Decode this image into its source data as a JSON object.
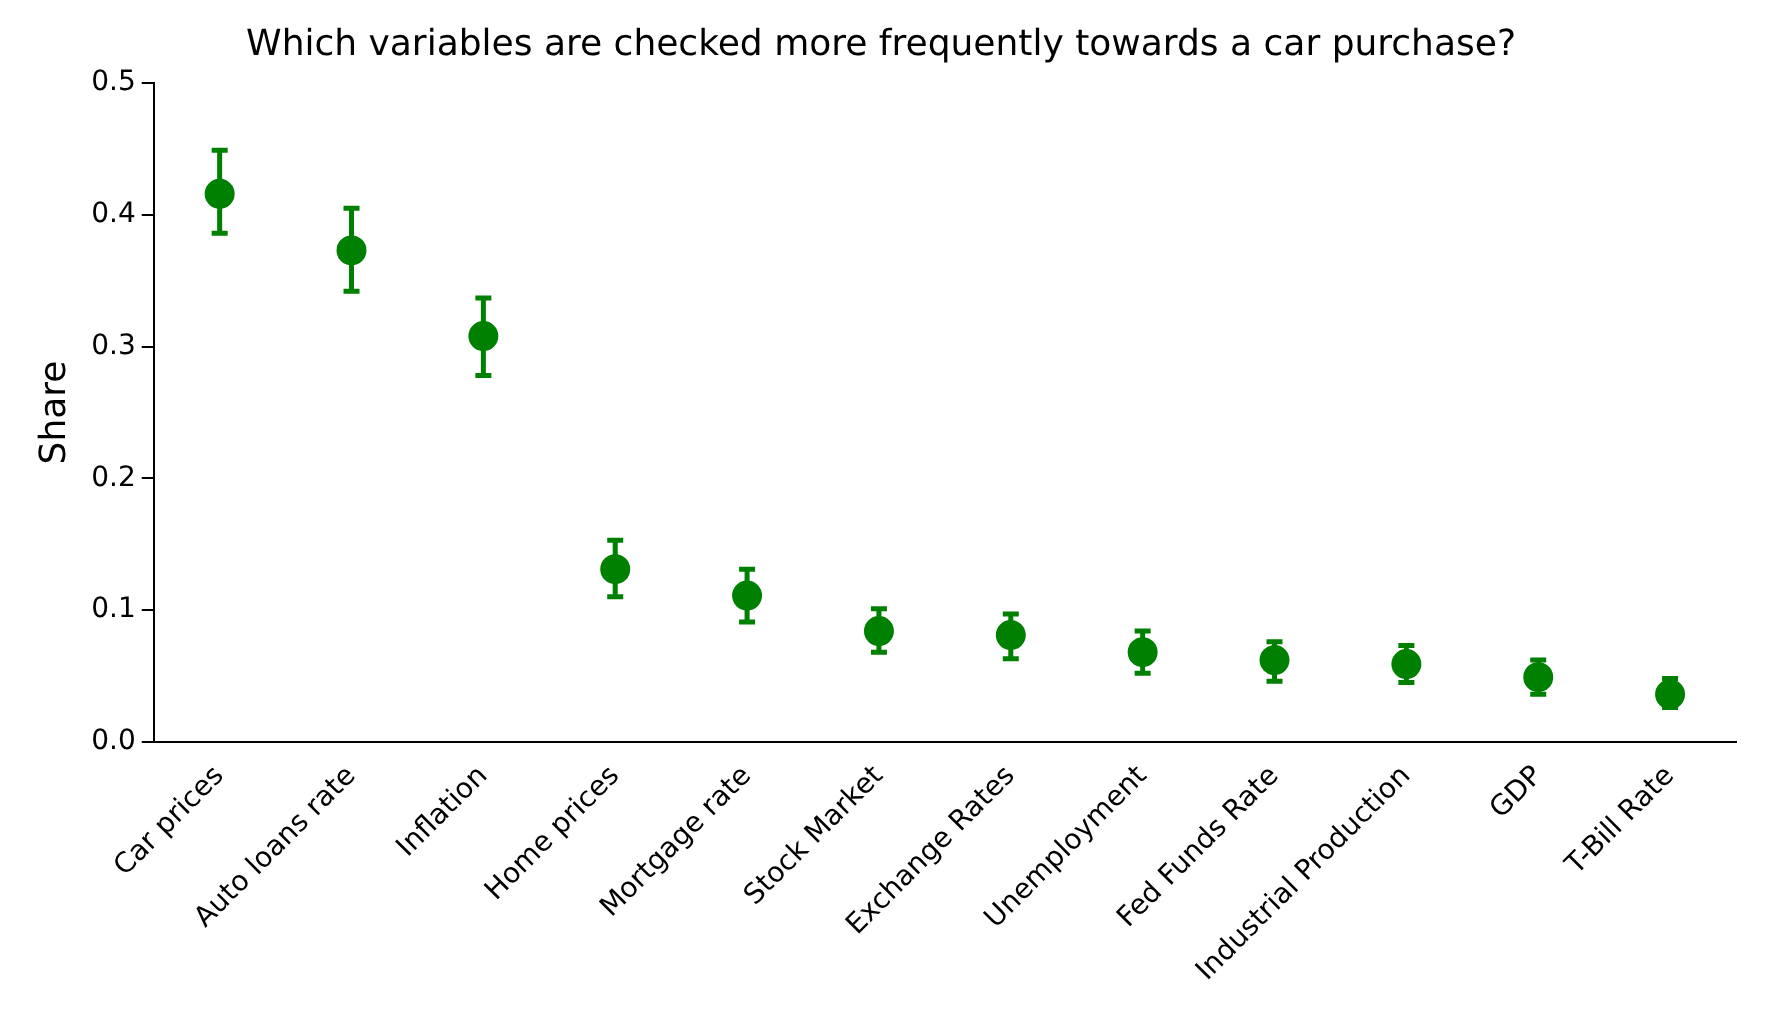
{
  "chart_data": {
    "type": "scatter",
    "title": "Which variables are checked more frequently towards a car purchase?",
    "ylabel": "Share",
    "categories": [
      "Car prices",
      "Auto loans rate",
      "Inflation",
      "Home prices",
      "Mortgage rate",
      "Stock Market",
      "Exchange Rates",
      "Unemployment",
      "Fed Funds Rate",
      "Industrial Production",
      "GDP",
      "T-Bill Rate"
    ],
    "values": [
      0.416,
      0.373,
      0.308,
      0.131,
      0.111,
      0.084,
      0.081,
      0.068,
      0.062,
      0.059,
      0.049,
      0.036
    ],
    "errors": [
      [
        0.386,
        0.449
      ],
      [
        0.342,
        0.405
      ],
      [
        0.278,
        0.337
      ],
      [
        0.11,
        0.153
      ],
      [
        0.091,
        0.131
      ],
      [
        0.068,
        0.101
      ],
      [
        0.063,
        0.097
      ],
      [
        0.052,
        0.084
      ],
      [
        0.046,
        0.076
      ],
      [
        0.045,
        0.073
      ],
      [
        0.036,
        0.062
      ],
      [
        0.026,
        0.048
      ]
    ],
    "color": "#008000",
    "marker": "circle",
    "ylim": [
      0,
      0.5
    ],
    "yticks": [
      {
        "value": 0,
        "label": "0.0"
      },
      0.1,
      0.2,
      0.3,
      0.4,
      0.5
    ],
    "grid": false,
    "legend": false
  }
}
